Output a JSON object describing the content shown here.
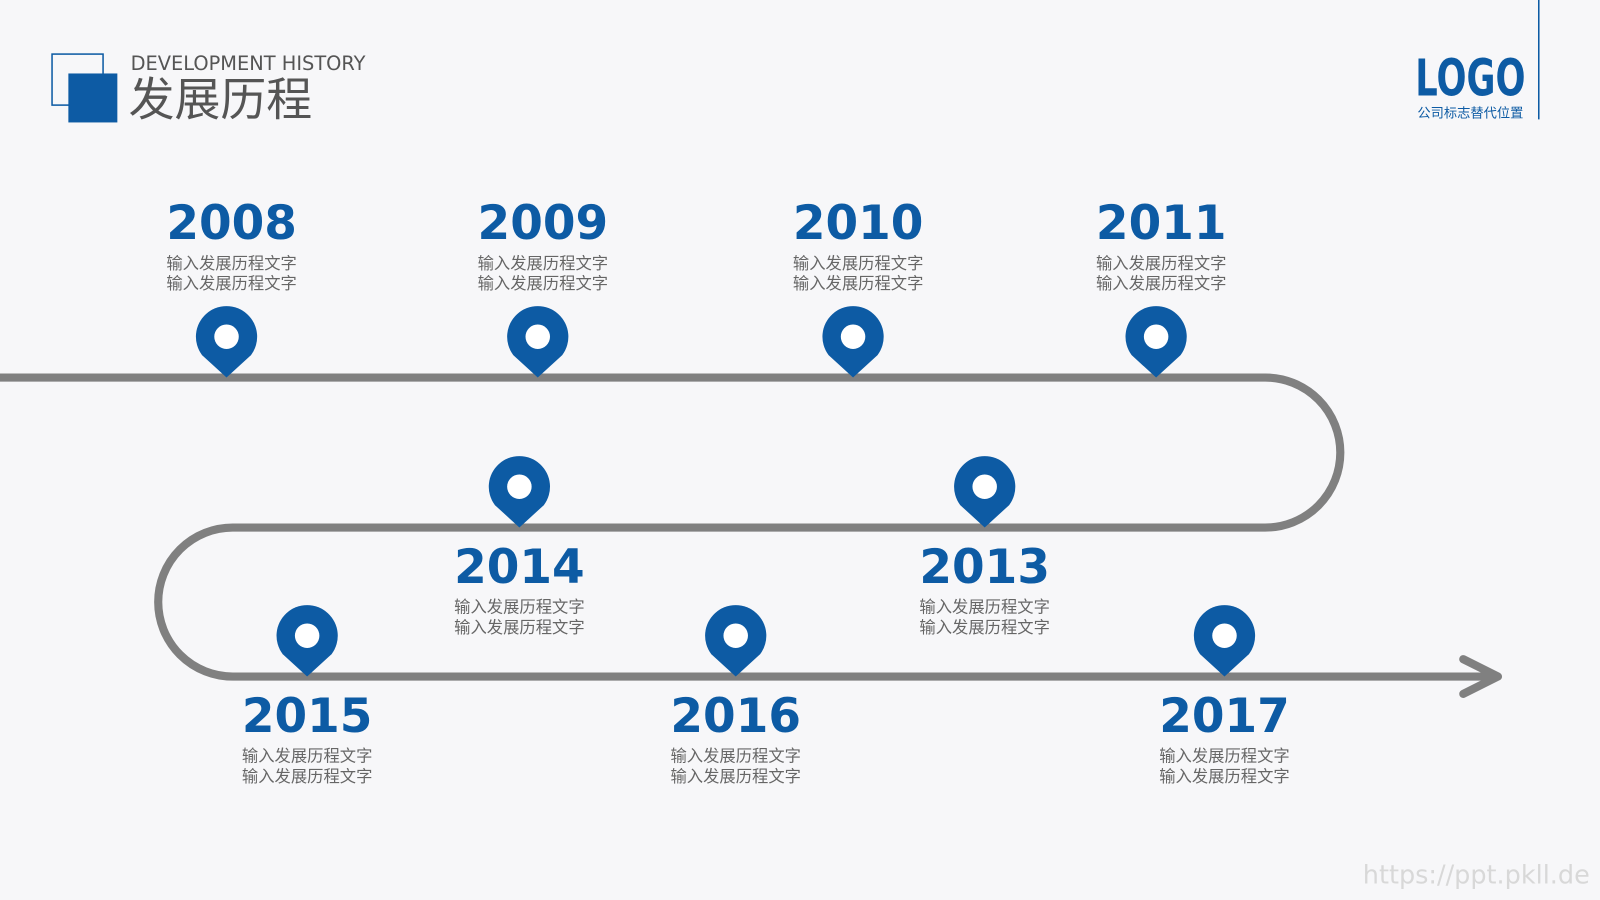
{
  "header": {
    "subtitle": "DEVELOPMENT HISTORY",
    "title": "发展历程"
  },
  "logo": {
    "text": "LOGO",
    "caption": "公司标志替代位置"
  },
  "milestones": [
    {
      "year": "2008",
      "lines": [
        "输入发展历程文字",
        "输入发展历程文字"
      ]
    },
    {
      "year": "2009",
      "lines": [
        "输入发展历程文字",
        "输入发展历程文字"
      ]
    },
    {
      "year": "2010",
      "lines": [
        "输入发展历程文字",
        "输入发展历程文字"
      ]
    },
    {
      "year": "2011",
      "lines": [
        "输入发展历程文字",
        "输入发展历程文字"
      ]
    },
    {
      "year": "2013",
      "lines": [
        "输入发展历程文字",
        "输入发展历程文字"
      ]
    },
    {
      "year": "2014",
      "lines": [
        "输入发展历程文字",
        "输入发展历程文字"
      ]
    },
    {
      "year": "2015",
      "lines": [
        "输入发展历程文字",
        "输入发展历程文字"
      ]
    },
    {
      "year": "2016",
      "lines": [
        "输入发展历程文字",
        "输入发展历程文字"
      ]
    },
    {
      "year": "2017",
      "lines": [
        "输入发展历程文字",
        "输入发展历程文字"
      ]
    }
  ],
  "watermark": "https://ppt.pkll.de"
}
